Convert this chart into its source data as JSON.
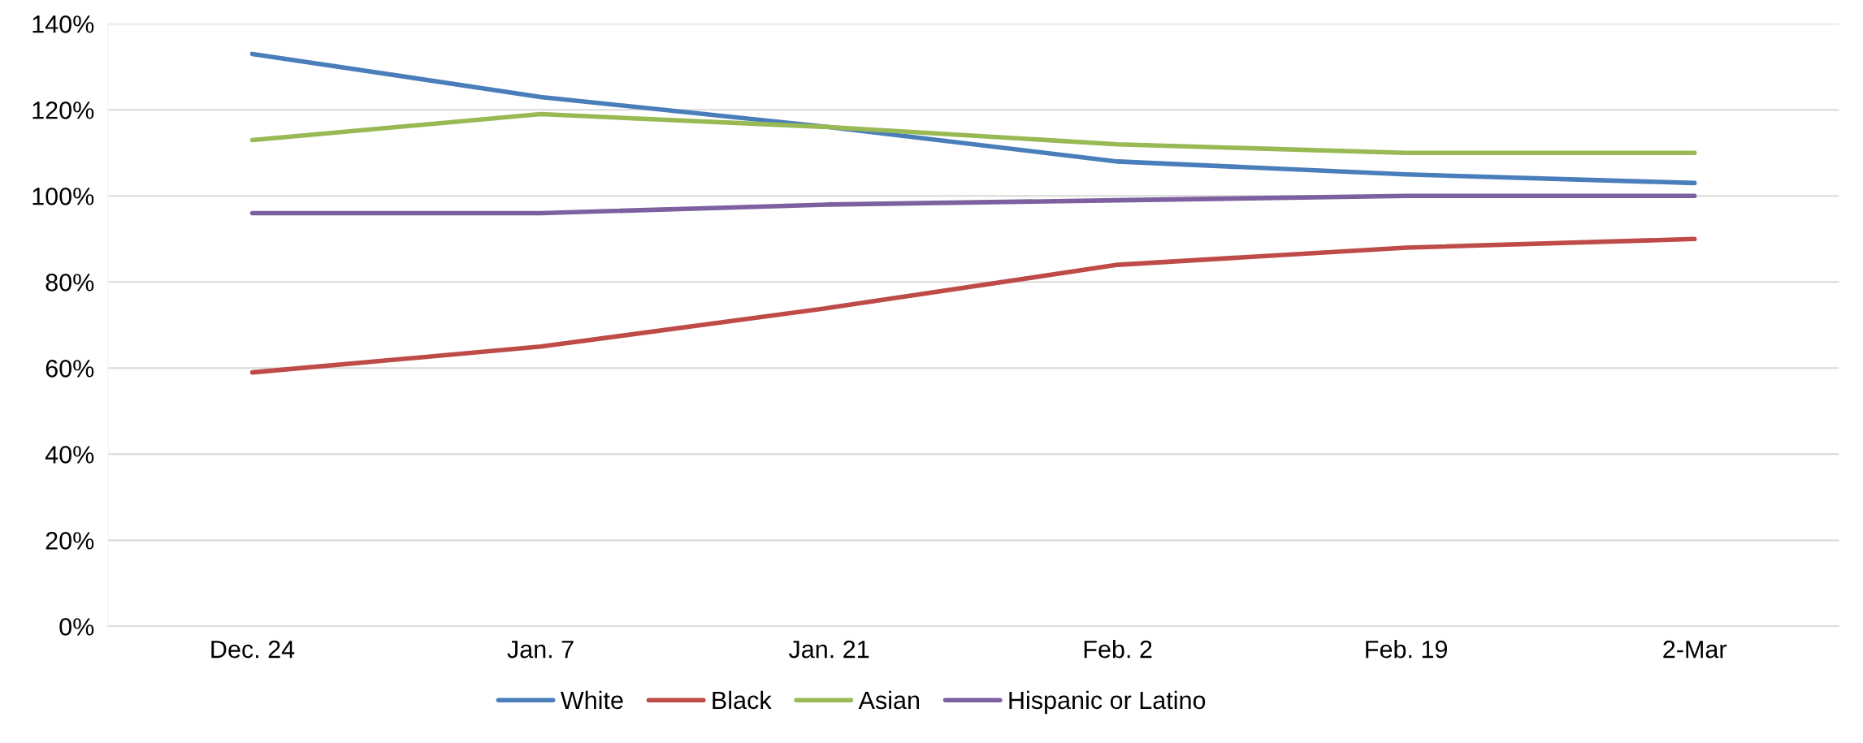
{
  "chart_data": {
    "type": "line",
    "categories": [
      "Dec. 24",
      "Jan. 7",
      "Jan. 21",
      "Feb. 2",
      "Feb. 19",
      "2-Mar"
    ],
    "series": [
      {
        "name": "White",
        "color": "#4a7ebb",
        "values": [
          133,
          123,
          116,
          108,
          105,
          103
        ]
      },
      {
        "name": "Black",
        "color": "#be4b48",
        "values": [
          59,
          65,
          74,
          84,
          88,
          90
        ]
      },
      {
        "name": "Asian",
        "color": "#98b954",
        "values": [
          113,
          119,
          116,
          112,
          110,
          110
        ]
      },
      {
        "name": "Hispanic or Latino",
        "color": "#7d60a0",
        "values": [
          96,
          96,
          98,
          99,
          100,
          100
        ]
      }
    ],
    "ylim": [
      0,
      140
    ],
    "yticks": [
      {
        "value": 0,
        "label": "0%"
      },
      {
        "value": 20,
        "label": "20%"
      },
      {
        "value": 40,
        "label": "40%"
      },
      {
        "value": 60,
        "label": "60%"
      },
      {
        "value": 80,
        "label": "80%"
      },
      {
        "value": 100,
        "label": "100%"
      },
      {
        "value": 120,
        "label": "120%"
      },
      {
        "value": 140,
        "label": "140%"
      }
    ],
    "grid": "y",
    "legend": "bottom",
    "marker": "none",
    "line_style": "solid"
  }
}
